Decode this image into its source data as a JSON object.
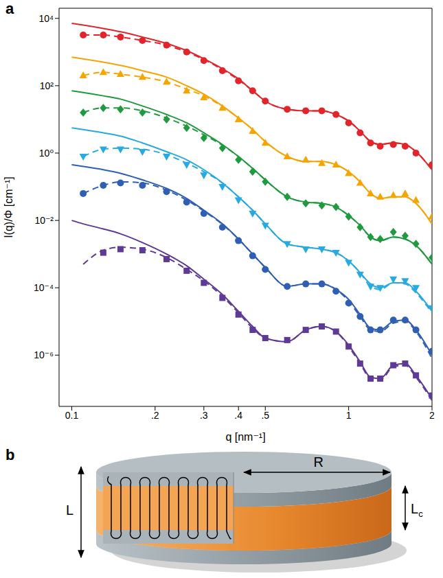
{
  "chart_data": {
    "type": "line",
    "panel": "a",
    "x_label": "q [nm⁻¹]",
    "y_label": "I(q)/Φ [cm⁻¹]",
    "log": true,
    "grid": false,
    "xlim": [
      0.09,
      2
    ],
    "xticks": [
      0.1,
      {
        "value": 0.2,
        "label": ".2"
      },
      {
        "value": 0.3,
        "label": ".3"
      },
      {
        "value": 0.4,
        "label": ".4"
      },
      {
        "value": 0.5,
        "label": ".5"
      },
      1,
      2
    ],
    "ylim": [
      3e-08,
      20000
    ],
    "yticks": [
      {
        "value": 1e-06,
        "label": "10⁻⁶"
      },
      {
        "value": 0.0001,
        "label": "10⁻⁴"
      },
      {
        "value": 0.01,
        "label": "10⁻²"
      },
      {
        "value": 1,
        "label": "10⁰"
      },
      {
        "value": 100,
        "label": "10²"
      },
      {
        "value": 10000,
        "label": "10⁴"
      }
    ],
    "x": [
      0.1,
      0.11,
      0.13,
      0.15,
      0.18,
      0.22,
      0.26,
      0.3,
      0.35,
      0.4,
      0.45,
      0.5,
      0.6,
      0.7,
      0.8,
      0.9,
      1.0,
      1.1,
      1.2,
      1.3,
      1.45,
      1.6,
      1.75,
      2.0
    ],
    "series": [
      {
        "type": "scatter",
        "color": "#e3242b",
        "marker": "circle",
        "values": [
          null,
          3200,
          3200,
          2800,
          2200,
          1600,
          1000,
          560,
          280,
          140,
          71,
          35,
          20,
          18,
          18,
          14,
          7.9,
          4.0,
          2.0,
          1.6,
          1.8,
          1.6,
          1.0,
          0.45
        ]
      },
      {
        "type": "line",
        "color": "#e3242b",
        "line_style": "solid",
        "values": [
          7100,
          6300,
          5000,
          4000,
          2800,
          1800,
          1100,
          630,
          320,
          160,
          71,
          35,
          20,
          18,
          18,
          14,
          8.9,
          4.5,
          2.2,
          1.8,
          2.0,
          1.8,
          1.1,
          0.32
        ]
      },
      {
        "type": "line",
        "color": "#e3242b",
        "line_style": "dashed",
        "values": [
          null,
          3200,
          3200,
          2800,
          2200,
          1600,
          1000,
          600,
          300,
          150,
          71,
          35,
          20,
          18,
          18,
          14,
          8.9,
          4.5,
          2.2,
          1.8,
          2.0,
          1.8,
          1.1,
          0.32
        ]
      },
      {
        "type": "scatter",
        "color": "#f6a500",
        "marker": "triangle",
        "values": [
          null,
          200,
          250,
          220,
          180,
          130,
          71,
          45,
          22,
          10,
          4.5,
          2.0,
          0.79,
          0.63,
          0.5,
          0.45,
          0.25,
          0.13,
          0.063,
          0.05,
          0.056,
          0.063,
          0.04,
          0.013
        ]
      },
      {
        "type": "line",
        "color": "#f6a500",
        "line_style": "solid",
        "values": [
          710,
          630,
          500,
          400,
          280,
          180,
          100,
          56,
          25,
          11,
          5.0,
          2.2,
          0.79,
          0.56,
          0.56,
          0.45,
          0.28,
          0.14,
          0.063,
          0.045,
          0.05,
          0.05,
          0.032,
          0.0079
        ]
      },
      {
        "type": "line",
        "color": "#f6a500",
        "line_style": "dashed",
        "values": [
          null,
          200,
          250,
          220,
          180,
          130,
          79,
          50,
          24,
          11,
          5.0,
          2.2,
          0.79,
          0.56,
          0.56,
          0.45,
          0.28,
          0.14,
          0.063,
          0.045,
          0.05,
          0.05,
          0.032,
          0.0079
        ]
      },
      {
        "type": "scatter",
        "color": "#1f9a3f",
        "marker": "diamond",
        "values": [
          null,
          16,
          22,
          20,
          16,
          10,
          5.6,
          2.8,
          1.4,
          0.63,
          0.28,
          0.14,
          0.05,
          0.032,
          0.028,
          0.025,
          0.013,
          0.0063,
          0.0032,
          0.0028,
          0.0045,
          0.0035,
          0.002,
          0.00079
        ]
      },
      {
        "type": "line",
        "color": "#1f9a3f",
        "line_style": "solid",
        "values": [
          71,
          63,
          50,
          40,
          25,
          14,
          7.9,
          4.0,
          1.8,
          0.79,
          0.35,
          0.16,
          0.05,
          0.035,
          0.032,
          0.025,
          0.014,
          0.0071,
          0.0032,
          0.0025,
          0.0032,
          0.0028,
          0.0018,
          0.0005
        ]
      },
      {
        "type": "line",
        "color": "#1f9a3f",
        "line_style": "dashed",
        "values": [
          null,
          16,
          22,
          22,
          18,
          11,
          6.3,
          3.5,
          1.7,
          0.79,
          0.35,
          0.16,
          0.05,
          0.035,
          0.032,
          0.025,
          0.014,
          0.0071,
          0.0032,
          0.0025,
          0.0032,
          0.0028,
          0.0018,
          0.0005
        ]
      },
      {
        "type": "scatter",
        "color": "#27a9e1",
        "marker": "triangle-down",
        "values": [
          null,
          0.79,
          1.3,
          1.3,
          1.1,
          0.79,
          0.45,
          0.22,
          0.1,
          0.04,
          0.016,
          0.0071,
          0.002,
          0.0014,
          0.0014,
          0.0011,
          0.00056,
          0.00025,
          0.00011,
          0.0001,
          0.00018,
          0.00016,
          0.0001,
          2.5e-05
        ]
      },
      {
        "type": "line",
        "color": "#27a9e1",
        "line_style": "solid",
        "values": [
          5.6,
          5.0,
          4.0,
          3.2,
          2.0,
          1.1,
          0.63,
          0.32,
          0.13,
          0.05,
          0.02,
          0.0079,
          0.002,
          0.0016,
          0.0014,
          0.0011,
          0.00063,
          0.00028,
          0.00013,
          0.0001,
          0.00014,
          0.00014,
          7.9e-05,
          2e-05
        ]
      },
      {
        "type": "line",
        "color": "#27a9e1",
        "line_style": "dashed",
        "values": [
          null,
          0.79,
          1.3,
          1.4,
          1.3,
          0.89,
          0.5,
          0.28,
          0.13,
          0.05,
          0.02,
          0.0079,
          0.002,
          0.0016,
          0.0014,
          0.0011,
          0.00063,
          0.00028,
          0.00011,
          8.9e-05,
          0.00014,
          0.00013,
          7.1e-05,
          1.8e-05
        ]
      },
      {
        "type": "scatter",
        "color": "#2e5fb3",
        "marker": "circle",
        "values": [
          null,
          0.063,
          0.11,
          0.13,
          0.11,
          0.071,
          0.035,
          0.016,
          0.0063,
          0.0025,
          0.00089,
          0.00035,
          0.00011,
          0.00013,
          0.00013,
          7.9e-05,
          3.5e-05,
          1.4e-05,
          5.6e-06,
          5.6e-06,
          1.1e-05,
          1.1e-05,
          5.6e-06,
          1.3e-06
        ]
      },
      {
        "type": "line",
        "color": "#2e5fb3",
        "line_style": "solid",
        "values": [
          0.45,
          0.4,
          0.32,
          0.25,
          0.16,
          0.089,
          0.045,
          0.02,
          0.0079,
          0.0028,
          0.001,
          0.0004,
          0.00011,
          0.00013,
          0.00013,
          8.9e-05,
          4.5e-05,
          1.6e-05,
          6.3e-06,
          5.6e-06,
          1e-05,
          1.1e-05,
          5.6e-06,
          1e-06
        ]
      },
      {
        "type": "line",
        "color": "#2e5fb3",
        "line_style": "dashed",
        "values": [
          null,
          0.063,
          0.11,
          0.14,
          0.13,
          0.079,
          0.04,
          0.019,
          0.0076,
          0.0028,
          0.001,
          0.0004,
          0.00011,
          0.00013,
          0.00013,
          8.9e-05,
          4e-05,
          1.4e-05,
          5.6e-06,
          5e-06,
          8.9e-06,
          1e-05,
          5e-06,
          7.9e-07
        ]
      },
      {
        "type": "scatter",
        "color": "#5e3a96",
        "marker": "square",
        "values": [
          null,
          null,
          0.0011,
          0.0014,
          0.0013,
          0.00071,
          0.00032,
          0.00014,
          5e-05,
          1.6e-05,
          5.6e-06,
          3.2e-06,
          2.8e-06,
          5.6e-06,
          7.1e-06,
          5e-06,
          1.8e-06,
          5.6e-07,
          2e-07,
          2e-07,
          5e-07,
          5.6e-07,
          2.5e-07,
          6.3e-08
        ]
      },
      {
        "type": "line",
        "color": "#5e3a96",
        "line_style": "solid",
        "values": [
          0.01,
          0.0079,
          0.0056,
          0.004,
          0.0022,
          0.001,
          0.00045,
          0.00018,
          6.3e-05,
          2e-05,
          7.1e-06,
          3.2e-06,
          2.5e-06,
          5.6e-06,
          7.1e-06,
          5e-06,
          2e-06,
          6.3e-07,
          2.2e-07,
          2e-07,
          5e-07,
          5.6e-07,
          2.5e-07,
          5e-08
        ]
      },
      {
        "type": "line",
        "color": "#5e3a96",
        "line_style": "dashed",
        "values": [
          null,
          0.0005,
          0.0013,
          0.0016,
          0.0014,
          0.00079,
          0.00035,
          0.00016,
          5.6e-05,
          1.8e-05,
          6.3e-06,
          3.2e-06,
          2.5e-06,
          5.6e-06,
          7.1e-06,
          5e-06,
          1.8e-06,
          5.6e-07,
          2e-07,
          1.8e-07,
          4.5e-07,
          5e-07,
          2.2e-07,
          4.5e-08
        ]
      }
    ]
  },
  "diagram": {
    "panel": "b",
    "labels": {
      "thickness": "L",
      "radius": "R",
      "core_thickness": {
        "text": "L",
        "subscript": "c"
      }
    }
  }
}
